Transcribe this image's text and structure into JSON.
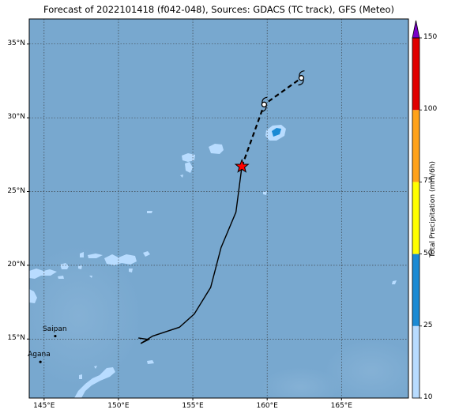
{
  "title": "Forecast of 2022101418 (f042-048), Sources: GDACS (TC track), GFS (Meteo)",
  "map": {
    "lon_range": [
      144,
      169.5
    ],
    "lat_range": [
      11,
      36.7
    ],
    "lat_ticks": [
      {
        "value": 35,
        "label": "35°N"
      },
      {
        "value": 30,
        "label": "30°N"
      },
      {
        "value": 25,
        "label": "25°N"
      },
      {
        "value": 20,
        "label": "20°N"
      },
      {
        "value": 15,
        "label": "15°N"
      }
    ],
    "lon_ticks": [
      {
        "value": 145,
        "label": "145°E"
      },
      {
        "value": 150,
        "label": "150°E"
      },
      {
        "value": 155,
        "label": "155°E"
      },
      {
        "value": 160,
        "label": "160°E"
      },
      {
        "value": 165,
        "label": "165°E"
      }
    ],
    "grid": true,
    "ocean_color": "#78a8cf",
    "places": [
      {
        "name": "Saipan",
        "lon": 145.75,
        "lat": 15.2
      },
      {
        "name": "Agana",
        "lon": 144.75,
        "lat": 13.45
      }
    ],
    "track_observed": [
      [
        151.5,
        14.7
      ],
      [
        152.3,
        15.2
      ],
      [
        154.1,
        15.8
      ],
      [
        155.1,
        16.7
      ],
      [
        156.2,
        18.5
      ],
      [
        156.9,
        21.2
      ],
      [
        157.9,
        23.6
      ],
      [
        158.3,
        26.7
      ]
    ],
    "track_forecast": [
      [
        158.3,
        26.7
      ],
      [
        159.8,
        30.9
      ],
      [
        162.3,
        32.7
      ]
    ],
    "current_position": {
      "lon": 158.3,
      "lat": 26.7
    },
    "forecast_symbols": [
      {
        "lon": 159.8,
        "lat": 30.9
      },
      {
        "lon": 162.3,
        "lat": 32.7
      }
    ]
  },
  "colorbar": {
    "title": "Total Precipitation (mm/6h)",
    "levels": [
      10,
      25,
      50,
      75,
      100,
      150
    ],
    "colors": [
      "#b8dcff",
      "#1a8ad4",
      "#ffff00",
      "#ffa21a",
      "#e00000"
    ],
    "extend_color": "#7a00c8"
  }
}
